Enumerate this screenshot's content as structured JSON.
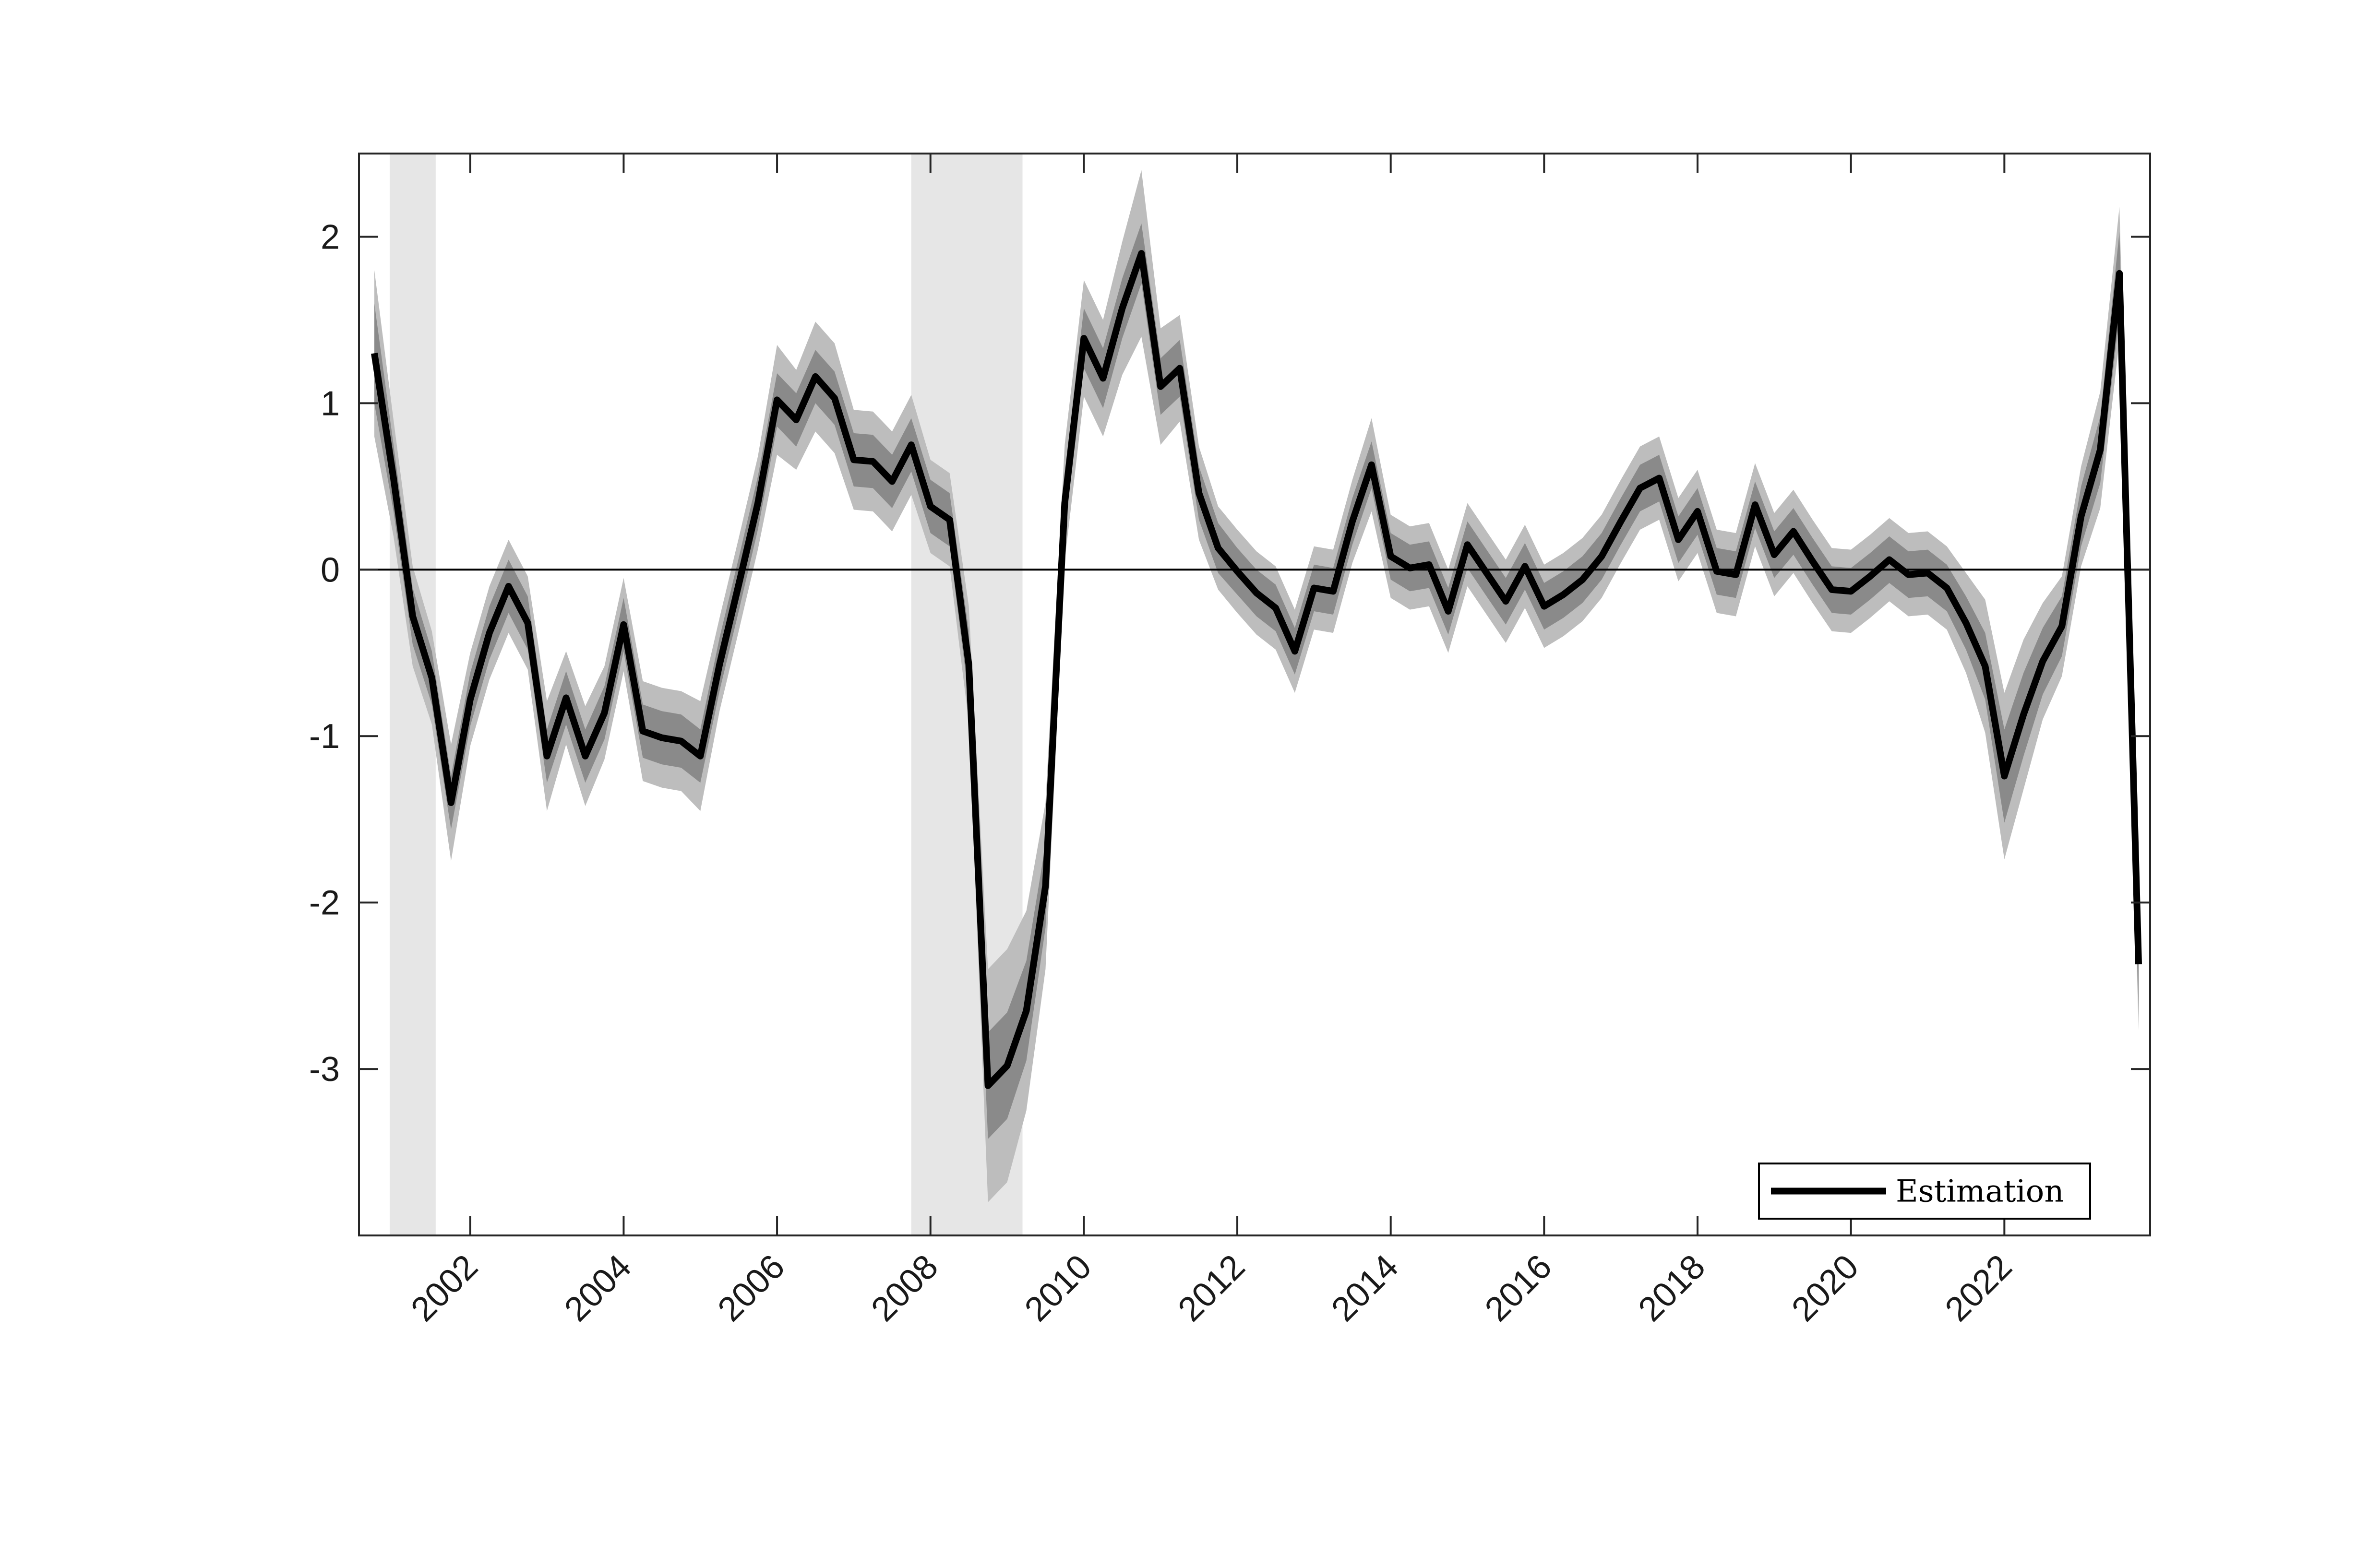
{
  "chart_data": {
    "type": "line",
    "title": "",
    "xlabel": "",
    "ylabel": "",
    "xlim": [
      2000.55,
      2023.9
    ],
    "ylim": [
      -4,
      2.5
    ],
    "x_ticks": [
      2002,
      2004,
      2006,
      2008,
      2010,
      2012,
      2014,
      2016,
      2018,
      2020,
      2022
    ],
    "x_tick_labels": [
      "2002",
      "2004",
      "2006",
      "2008",
      "2010",
      "2012",
      "2014",
      "2016",
      "2018",
      "2020",
      "2022"
    ],
    "y_ticks": [
      2,
      1,
      0,
      -1,
      -2,
      -3
    ],
    "y_tick_labels": [
      "2",
      "1",
      "0",
      "-1",
      "-2",
      "-3"
    ],
    "grid": false,
    "zero_line": true,
    "legend": {
      "placement": "bottom-right",
      "entries": [
        "Estimation"
      ]
    },
    "colors": {
      "line": "#000000",
      "band_outer": "#bdbdbd",
      "band_inner": "#8a8a8a",
      "recession": "#e6e6e6"
    },
    "recession_periods": [
      [
        2000.95,
        2001.55
      ],
      [
        2007.75,
        2009.2
      ]
    ],
    "series": [
      {
        "name": "Estimation",
        "x": [
          2000.75,
          2001.0,
          2001.25,
          2001.5,
          2001.75,
          2002.0,
          2002.25,
          2002.5,
          2002.75,
          2003.0,
          2003.25,
          2003.5,
          2003.75,
          2004.0,
          2004.25,
          2004.5,
          2004.75,
          2005.0,
          2005.25,
          2005.5,
          2005.75,
          2006.0,
          2006.25,
          2006.5,
          2006.75,
          2007.0,
          2007.25,
          2007.5,
          2007.75,
          2008.0,
          2008.25,
          2008.5,
          2008.75,
          2009.0,
          2009.25,
          2009.5,
          2009.75,
          2010.0,
          2010.25,
          2010.5,
          2010.75,
          2011.0,
          2011.25,
          2011.5,
          2011.75,
          2012.0,
          2012.25,
          2012.5,
          2012.75,
          2013.0,
          2013.25,
          2013.5,
          2013.75,
          2014.0,
          2014.25,
          2014.5,
          2014.75,
          2015.0,
          2015.25,
          2015.5,
          2015.75,
          2016.0,
          2016.25,
          2016.5,
          2016.75,
          2017.0,
          2017.25,
          2017.5,
          2017.75,
          2018.0,
          2018.25,
          2018.5,
          2018.75,
          2019.0,
          2019.25,
          2019.5,
          2019.75,
          2020.0,
          2020.25,
          2020.5,
          2020.75,
          2021.0,
          2021.25,
          2021.5,
          2021.75,
          2022.0,
          2022.25,
          2022.5,
          2022.75,
          2023.0,
          2023.25,
          2023.5,
          2023.75
        ],
        "values": [
          1.3,
          0.55,
          -0.28,
          -0.65,
          -1.4,
          -0.78,
          -0.38,
          -0.1,
          -0.32,
          -1.12,
          -0.77,
          -1.12,
          -0.86,
          -0.33,
          -0.97,
          -1.01,
          -1.03,
          -1.12,
          -0.57,
          -0.09,
          0.4,
          1.02,
          0.9,
          1.16,
          1.03,
          0.66,
          0.65,
          0.53,
          0.75,
          0.38,
          0.3,
          -0.57,
          -3.1,
          -2.98,
          -2.65,
          -1.9,
          0.4,
          1.39,
          1.15,
          1.57,
          1.9,
          1.1,
          1.21,
          0.46,
          0.13,
          -0.01,
          -0.14,
          -0.23,
          -0.49,
          -0.11,
          -0.13,
          0.29,
          0.63,
          0.08,
          0.01,
          0.03,
          -0.25,
          0.15,
          -0.02,
          -0.19,
          0.02,
          -0.22,
          -0.15,
          -0.06,
          0.08,
          0.29,
          0.49,
          0.55,
          0.18,
          0.35,
          -0.01,
          -0.03,
          0.39,
          0.09,
          0.23,
          0.05,
          -0.12,
          -0.13,
          -0.04,
          0.06,
          -0.03,
          -0.02,
          -0.11,
          -0.32,
          -0.58,
          -1.24,
          -0.87,
          -0.55,
          -0.34,
          0.32,
          0.72,
          1.78,
          -2.37
        ],
        "band_inner_halfwidth": [
          0.3,
          0.2,
          0.17,
          0.16,
          0.16,
          0.16,
          0.16,
          0.16,
          0.16,
          0.16,
          0.16,
          0.16,
          0.16,
          0.16,
          0.16,
          0.16,
          0.16,
          0.16,
          0.16,
          0.16,
          0.16,
          0.16,
          0.16,
          0.16,
          0.16,
          0.16,
          0.16,
          0.16,
          0.16,
          0.16,
          0.16,
          0.2,
          0.32,
          0.32,
          0.3,
          0.25,
          0.18,
          0.18,
          0.18,
          0.18,
          0.18,
          0.17,
          0.17,
          0.16,
          0.15,
          0.14,
          0.14,
          0.14,
          0.14,
          0.14,
          0.14,
          0.14,
          0.14,
          0.14,
          0.14,
          0.14,
          0.14,
          0.14,
          0.14,
          0.14,
          0.14,
          0.14,
          0.14,
          0.14,
          0.14,
          0.14,
          0.14,
          0.14,
          0.14,
          0.14,
          0.14,
          0.14,
          0.14,
          0.14,
          0.14,
          0.14,
          0.14,
          0.14,
          0.14,
          0.14,
          0.14,
          0.14,
          0.14,
          0.16,
          0.2,
          0.28,
          0.25,
          0.2,
          0.18,
          0.18,
          0.2,
          0.25,
          0.3
        ],
        "band_outer_halfwidth": [
          0.5,
          0.35,
          0.3,
          0.28,
          0.35,
          0.28,
          0.28,
          0.28,
          0.28,
          0.33,
          0.28,
          0.3,
          0.28,
          0.28,
          0.3,
          0.3,
          0.3,
          0.33,
          0.28,
          0.28,
          0.28,
          0.33,
          0.3,
          0.33,
          0.33,
          0.3,
          0.3,
          0.3,
          0.3,
          0.28,
          0.28,
          0.35,
          0.7,
          0.7,
          0.6,
          0.5,
          0.35,
          0.35,
          0.35,
          0.4,
          0.5,
          0.35,
          0.32,
          0.28,
          0.25,
          0.25,
          0.25,
          0.25,
          0.25,
          0.25,
          0.25,
          0.25,
          0.28,
          0.25,
          0.25,
          0.25,
          0.25,
          0.25,
          0.25,
          0.25,
          0.25,
          0.25,
          0.25,
          0.25,
          0.25,
          0.25,
          0.25,
          0.25,
          0.25,
          0.25,
          0.25,
          0.25,
          0.25,
          0.25,
          0.25,
          0.25,
          0.25,
          0.25,
          0.25,
          0.25,
          0.25,
          0.25,
          0.25,
          0.3,
          0.4,
          0.5,
          0.45,
          0.35,
          0.3,
          0.3,
          0.35,
          0.4,
          0.4
        ]
      }
    ]
  }
}
